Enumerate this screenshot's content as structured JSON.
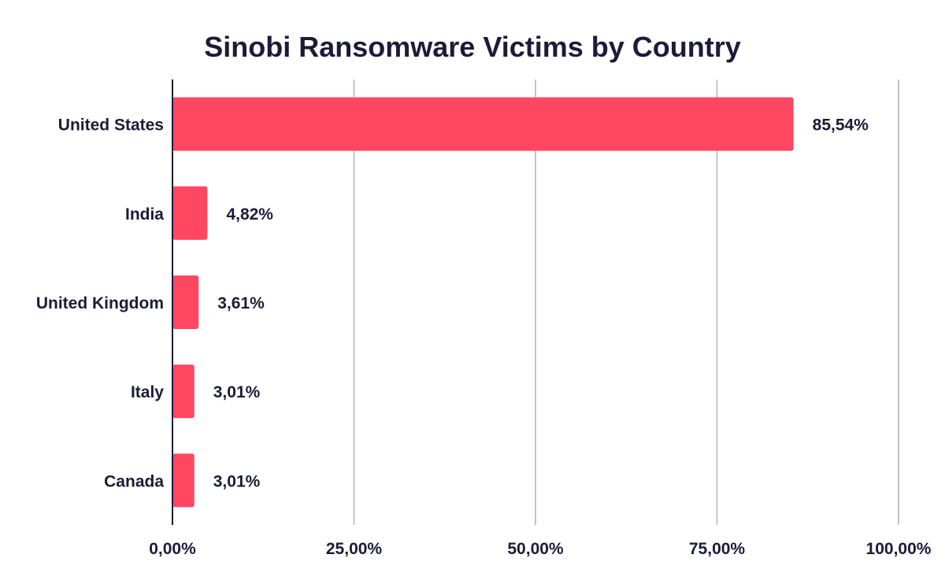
{
  "chart_data": {
    "type": "bar",
    "orientation": "horizontal",
    "title": "Sinobi Ransomware Victims by Country",
    "categories": [
      "United States",
      "India",
      "United Kingdom",
      "Italy",
      "Canada"
    ],
    "values": [
      85.54,
      4.82,
      3.61,
      3.01,
      3.01
    ],
    "value_labels": [
      "85,54%",
      "4,82%",
      "3,61%",
      "3,01%",
      "3,01%"
    ],
    "xlim": [
      0,
      100
    ],
    "xticks": [
      0,
      25,
      50,
      75,
      100
    ],
    "xtick_labels": [
      "0,00%",
      "25,00%",
      "50,00%",
      "75,00%",
      "100,00%"
    ],
    "grid": true,
    "legend": "none",
    "colors": {
      "bar": "#ff4762",
      "text": "#1b1b3a",
      "grid": "#c4c4c4",
      "axis": "#1b1b3a"
    }
  }
}
